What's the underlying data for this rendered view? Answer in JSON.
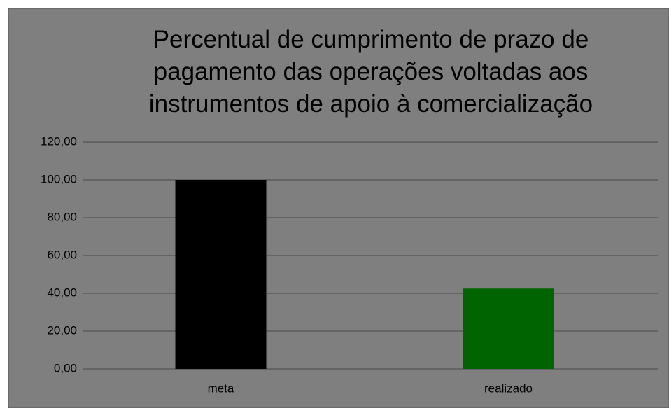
{
  "chart_data": {
    "type": "bar",
    "title": "Percentual de cumprimento de prazo de pagamento das operações voltadas aos instrumentos de apoio à comercialização",
    "categories": [
      "meta",
      "realizado"
    ],
    "values": [
      100,
      42.5
    ],
    "colors": [
      "#000000",
      "#006400"
    ],
    "ylim": [
      0,
      120
    ],
    "yticks": [
      {
        "value": 0,
        "label": "0,00"
      },
      {
        "value": 20,
        "label": "20,00"
      },
      {
        "value": 40,
        "label": "40,00"
      },
      {
        "value": 60,
        "label": "60,00"
      },
      {
        "value": 80,
        "label": "80,00"
      },
      {
        "value": 100,
        "label": "100,00"
      },
      {
        "value": 120,
        "label": "120,00"
      }
    ],
    "grid": true
  }
}
